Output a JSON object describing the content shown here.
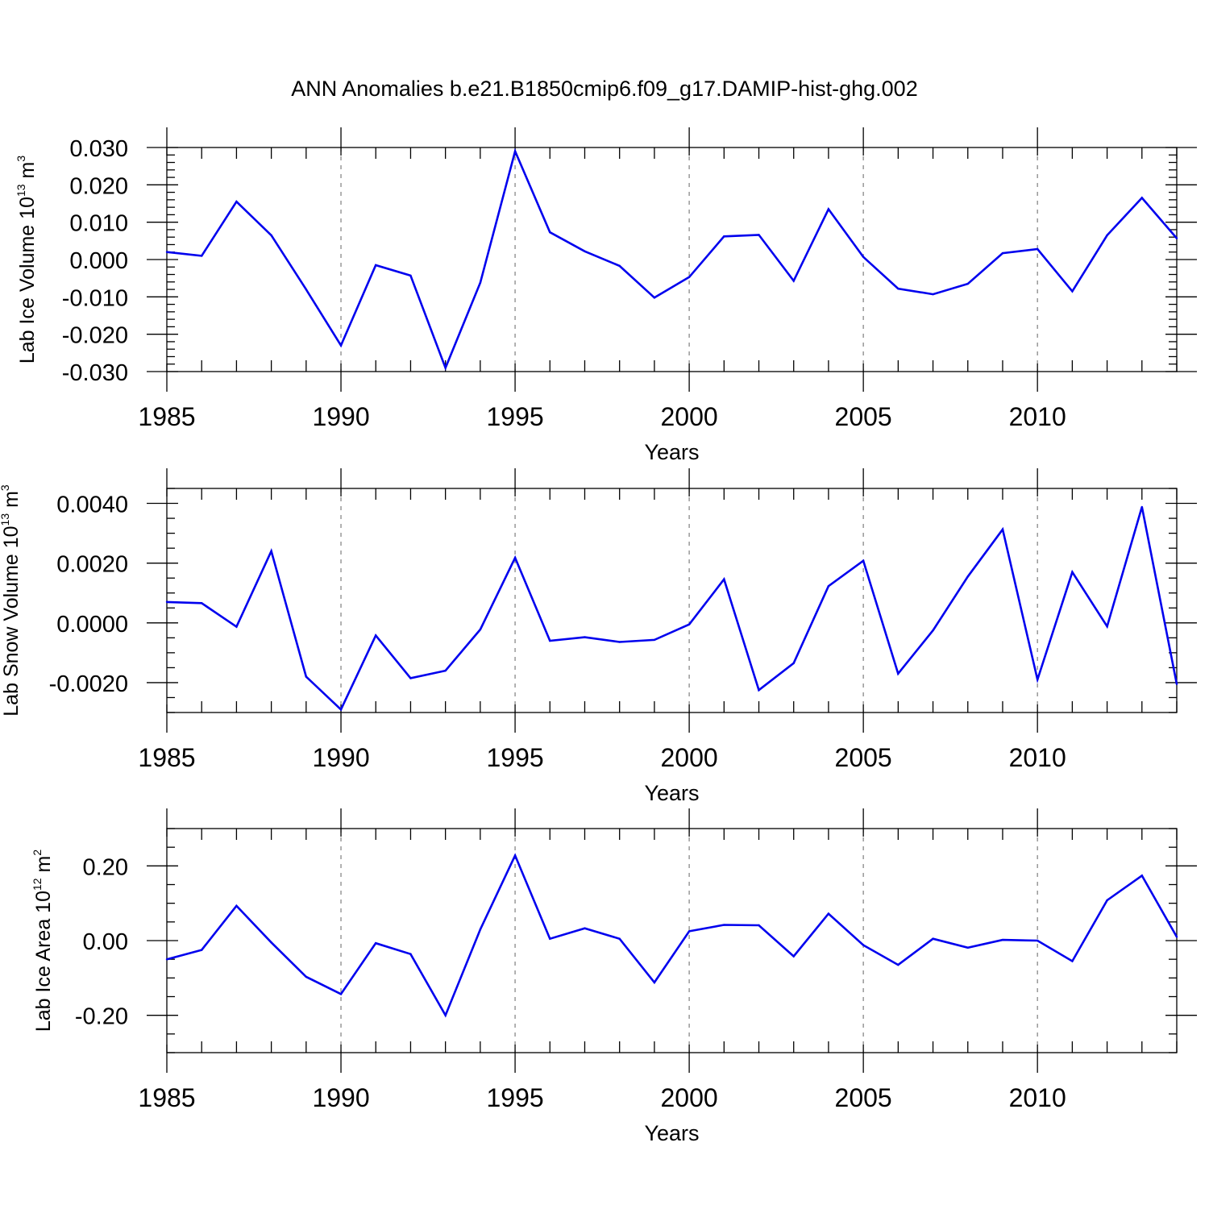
{
  "figure": {
    "title": "ANN Anomalies b.e21.B1850cmip6.f09_g17.DAMIP-hist-ghg.002",
    "line_color": "#0000ee"
  },
  "chart_data": [
    {
      "type": "line",
      "title": "",
      "xlabel": "Years",
      "ylabel_text": "Lab Ice Volume 10",
      "ylabel_exp": "13",
      "ylabel_unit": " m",
      "ylabel_unit_exp": "3",
      "xlim": [
        1985,
        2014
      ],
      "ylim": [
        -0.03,
        0.03
      ],
      "grid": "dashed vertical lines at major x ticks",
      "xticks": [
        1985,
        1990,
        1995,
        2000,
        2005,
        2010
      ],
      "xtick_labels": [
        "1985",
        "1990",
        "1995",
        "2000",
        "2005",
        "2010"
      ],
      "yticks": [
        -0.03,
        -0.02,
        -0.01,
        0.0,
        0.01,
        0.02,
        0.03
      ],
      "ytick_labels": [
        "-0.030",
        "-0.020",
        "-0.010",
        "0.000",
        "0.010",
        "0.020",
        "0.030"
      ],
      "y_minor_step": 0.002,
      "x": [
        1985,
        1986,
        1987,
        1988,
        1989,
        1990,
        1991,
        1992,
        1993,
        1994,
        1995,
        1996,
        1997,
        1998,
        1999,
        2000,
        2001,
        2002,
        2003,
        2004,
        2005,
        2006,
        2007,
        2008,
        2009,
        2010,
        2011,
        2012,
        2013,
        2014
      ],
      "y": [
        0.002,
        0.001,
        0.0155,
        0.0065,
        -0.008,
        -0.023,
        -0.0015,
        -0.0043,
        -0.029,
        -0.0062,
        0.029,
        0.0073,
        0.0022,
        -0.0017,
        -0.0102,
        -0.0047,
        0.0062,
        0.0066,
        -0.0057,
        0.0135,
        0.0007,
        -0.0078,
        -0.0093,
        -0.0065,
        0.0017,
        0.0028,
        -0.0085,
        0.0065,
        0.0165,
        0.0057
      ]
    },
    {
      "type": "line",
      "title": "",
      "xlabel": "Years",
      "ylabel_text": "Lab Snow Volume 10",
      "ylabel_exp": "13",
      "ylabel_unit": " m",
      "ylabel_unit_exp": "3",
      "xlim": [
        1985,
        2014
      ],
      "ylim": [
        -0.003,
        0.0045
      ],
      "grid": "dashed vertical lines at major x ticks",
      "xticks": [
        1985,
        1990,
        1995,
        2000,
        2005,
        2010
      ],
      "xtick_labels": [
        "1985",
        "1990",
        "1995",
        "2000",
        "2005",
        "2010"
      ],
      "yticks": [
        -0.002,
        0.0,
        0.002,
        0.004
      ],
      "ytick_labels": [
        "-0.0020",
        "0.0000",
        "0.0020",
        "0.0040"
      ],
      "y_minor_step": 0.0005,
      "x": [
        1985,
        1986,
        1987,
        1988,
        1989,
        1990,
        1991,
        1992,
        1993,
        1994,
        1995,
        1996,
        1997,
        1998,
        1999,
        2000,
        2001,
        2002,
        2003,
        2004,
        2005,
        2006,
        2007,
        2008,
        2009,
        2010,
        2011,
        2012,
        2013,
        2014
      ],
      "y": [
        0.0007,
        0.00066,
        -0.00013,
        0.0024,
        -0.0018,
        -0.0029,
        -0.00042,
        -0.00185,
        -0.0016,
        -0.00022,
        0.00218,
        -0.0006,
        -0.00048,
        -0.00064,
        -0.00057,
        -5e-05,
        0.00146,
        -0.00225,
        -0.00135,
        0.00123,
        0.00208,
        -0.0017,
        -0.00025,
        0.00155,
        0.00313,
        -0.0019,
        0.0017,
        -0.00012,
        0.00388,
        -0.00205
      ]
    },
    {
      "type": "line",
      "title": "",
      "xlabel": "Years",
      "ylabel_text": "Lab Ice Area 10",
      "ylabel_exp": "12",
      "ylabel_unit": " m",
      "ylabel_unit_exp": "2",
      "xlim": [
        1985,
        2014
      ],
      "ylim": [
        -0.3,
        0.3
      ],
      "grid": "dashed vertical lines at major x ticks",
      "xticks": [
        1985,
        1990,
        1995,
        2000,
        2005,
        2010
      ],
      "xtick_labels": [
        "1985",
        "1990",
        "1995",
        "2000",
        "2005",
        "2010"
      ],
      "yticks": [
        -0.2,
        0.0,
        0.2
      ],
      "ytick_labels": [
        "-0.20",
        "0.00",
        "0.20"
      ],
      "y_minor_step": 0.05,
      "x": [
        1985,
        1986,
        1987,
        1988,
        1989,
        1990,
        1991,
        1992,
        1993,
        1994,
        1995,
        1996,
        1997,
        1998,
        1999,
        2000,
        2001,
        2002,
        2003,
        2004,
        2005,
        2006,
        2007,
        2008,
        2009,
        2010,
        2011,
        2012,
        2013,
        2014
      ],
      "y": [
        -0.05,
        -0.025,
        0.093,
        -0.005,
        -0.097,
        -0.143,
        -0.007,
        -0.036,
        -0.2,
        0.03,
        0.228,
        0.005,
        0.033,
        0.005,
        -0.112,
        0.025,
        0.042,
        0.041,
        -0.042,
        0.072,
        -0.012,
        -0.065,
        0.005,
        -0.019,
        0.002,
        0.0,
        -0.055,
        0.108,
        0.174,
        0.01
      ]
    }
  ]
}
